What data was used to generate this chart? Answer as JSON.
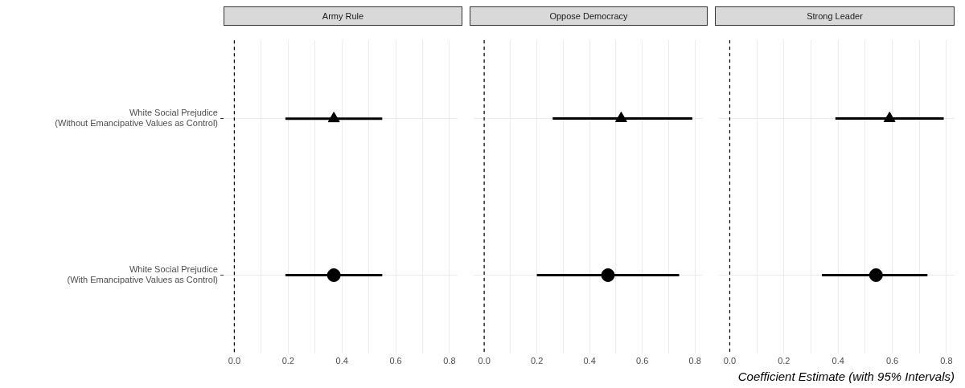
{
  "chart_data": [
    {
      "type": "scatter",
      "title": "Army Rule",
      "orientation": "horizontal",
      "categories": [
        "White Social Prejudice\n(Without Emancipative Values as Control)",
        "White Social Prejudice\n(With Emancipative Values as Control)"
      ],
      "series": [
        {
          "color": "#000000",
          "marker": "triangle",
          "values": [
            0.37,
            null
          ],
          "errors": [
            [
              0.19,
              0.55
            ],
            null
          ]
        },
        {
          "color": "#000000",
          "marker": "circle",
          "values": [
            null,
            0.37
          ],
          "errors": [
            null,
            [
              0.19,
              0.55
            ]
          ]
        }
      ],
      "xlim": [
        -0.04,
        0.83
      ],
      "xticks": [
        {
          "value": 0,
          "label": "0.0"
        },
        {
          "value": 0.1,
          "label": null
        },
        0.2,
        {
          "value": 0.3,
          "label": null
        },
        0.4,
        {
          "value": 0.5,
          "label": null
        },
        0.6,
        {
          "value": 0.7,
          "label": null
        },
        0.8
      ],
      "grid": true,
      "ref_lines": [
        {
          "axis": "x",
          "value": 0,
          "line_style": "dashed",
          "color": "#000000"
        }
      ]
    },
    {
      "type": "scatter",
      "title": "Oppose Democracy",
      "orientation": "horizontal",
      "categories": [
        null,
        null
      ],
      "series": [
        {
          "color": "#000000",
          "marker": "triangle",
          "values": [
            0.52,
            null
          ],
          "errors": [
            [
              0.26,
              0.79
            ],
            null
          ]
        },
        {
          "color": "#000000",
          "marker": "circle",
          "values": [
            null,
            0.47
          ],
          "errors": [
            null,
            [
              0.2,
              0.74
            ]
          ]
        }
      ],
      "xlim": [
        -0.04,
        0.83
      ],
      "xticks": [
        {
          "value": 0,
          "label": "0.0"
        },
        {
          "value": 0.1,
          "label": null
        },
        0.2,
        {
          "value": 0.3,
          "label": null
        },
        0.4,
        {
          "value": 0.5,
          "label": null
        },
        0.6,
        {
          "value": 0.7,
          "label": null
        },
        0.8
      ],
      "grid": true,
      "tick_labels": "x",
      "ref_lines": [
        {
          "axis": "x",
          "value": 0,
          "line_style": "dashed",
          "color": "#000000"
        }
      ]
    },
    {
      "type": "scatter",
      "title": "Strong Leader",
      "orientation": "horizontal",
      "xlabel": "Coefficient Estimate (with 95% Intervals)",
      "categories": [
        null,
        null
      ],
      "series": [
        {
          "color": "#000000",
          "marker": "triangle",
          "values": [
            0.59,
            null
          ],
          "errors": [
            [
              0.39,
              0.79
            ],
            null
          ]
        },
        {
          "color": "#000000",
          "marker": "circle",
          "values": [
            null,
            0.54
          ],
          "errors": [
            null,
            [
              0.34,
              0.73
            ]
          ]
        }
      ],
      "xlim": [
        -0.04,
        0.83
      ],
      "xticks": [
        {
          "value": 0,
          "label": "0.0"
        },
        {
          "value": 0.1,
          "label": null
        },
        0.2,
        {
          "value": 0.3,
          "label": null
        },
        0.4,
        {
          "value": 0.5,
          "label": null
        },
        0.6,
        {
          "value": 0.7,
          "label": null
        },
        0.8
      ],
      "grid": true,
      "tick_labels": "x",
      "ref_lines": [
        {
          "axis": "x",
          "value": 0,
          "line_style": "dashed",
          "color": "#000000"
        }
      ]
    }
  ]
}
